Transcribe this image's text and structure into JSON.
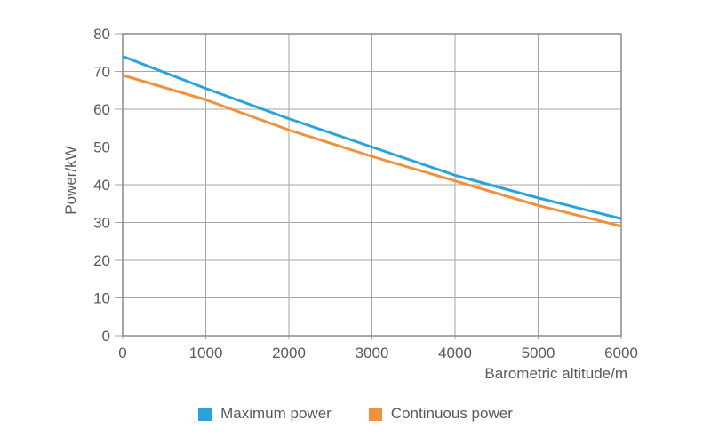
{
  "chart_data": {
    "type": "line",
    "title": "",
    "xlabel": "Barometric altitude/m",
    "ylabel": "Power/kW",
    "x": [
      0,
      1000,
      2000,
      3000,
      4000,
      5000,
      6000
    ],
    "x_ticks": [
      "0",
      "1000",
      "2000",
      "3000",
      "4000",
      "5000",
      "6000"
    ],
    "y_ticks": [
      "0",
      "10",
      "20",
      "30",
      "40",
      "50",
      "60",
      "70",
      "80"
    ],
    "xlim": [
      0,
      6000
    ],
    "ylim": [
      0,
      80
    ],
    "grid": true,
    "legend_position": "bottom",
    "series": [
      {
        "name": "Maximum power",
        "color": "#2aa3dc",
        "values": [
          74,
          65.5,
          57.5,
          50,
          42.5,
          36.5,
          31
        ]
      },
      {
        "name": "Continuous power",
        "color": "#f0913e",
        "values": [
          69,
          62.5,
          54.5,
          47.5,
          41,
          34.5,
          29
        ]
      }
    ]
  },
  "colors": {
    "grid": "#a6a6a6",
    "axis": "#8a8a8a",
    "tick_text": "#58595b",
    "background": "#ffffff"
  }
}
